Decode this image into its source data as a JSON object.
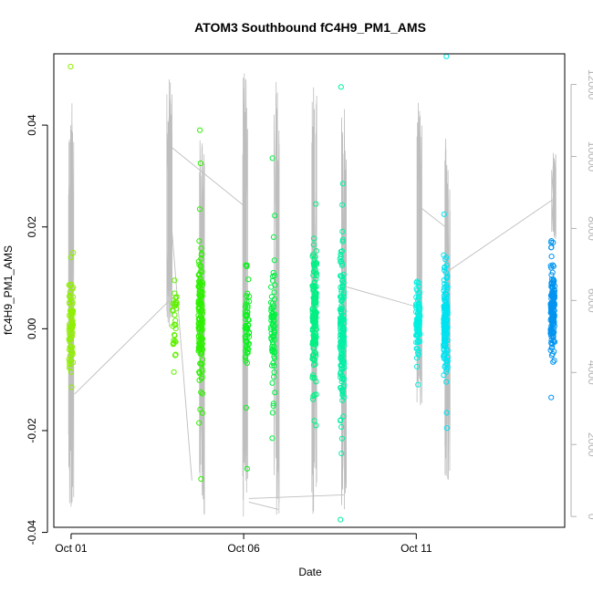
{
  "chart_data": {
    "type": "scatter",
    "title": "ATOM3 Southbound fC4H9_PM1_AMS",
    "xlabel": "Date",
    "ylabel": "fC4H9_PM1_AMS",
    "x_ticks": [
      "Oct 01",
      "Oct 06",
      "Oct 11"
    ],
    "x_tick_values": [
      1,
      6,
      11
    ],
    "xlim": [
      0.5,
      15.3
    ],
    "ylim": [
      -0.039,
      0.054
    ],
    "y_ticks": [
      "-0.04",
      "-0.02",
      "0.00",
      "0.02",
      "0.04"
    ],
    "y_tick_values": [
      -0.04,
      -0.02,
      0.0,
      0.02,
      0.04
    ],
    "y2_ticks": [
      "0",
      "2000",
      "4000",
      "6000",
      "8000",
      "10000",
      "12000"
    ],
    "y2_tick_values": [
      0,
      2000,
      4000,
      6000,
      8000,
      10000,
      12000
    ],
    "y2lim": [
      -300,
      12850
    ],
    "grid": false,
    "series": [
      {
        "kind": "points",
        "clusters": [
          {
            "x": 1.0,
            "y_center": 0.0005,
            "spread": 0.005,
            "n": 70,
            "color": "#8ff000",
            "extremes": [
              0.0515,
              0.014,
              -0.0115
            ]
          },
          {
            "x": 4.0,
            "y_center": 0.001,
            "spread": 0.004,
            "n": 30,
            "color": "#5ff000",
            "extremes": [
              0.0095,
              -0.0085
            ]
          },
          {
            "x": 4.75,
            "y_center": 0.001,
            "spread": 0.0065,
            "n": 150,
            "color": "#2ef000",
            "extremes": [
              0.039,
              0.0325,
              0.0235,
              -0.0185,
              -0.0295
            ]
          },
          {
            "x": 6.1,
            "y_center": 0.001,
            "spread": 0.004,
            "n": 60,
            "color": "#0ff020",
            "extremes": [
              0.0125,
              -0.0155,
              -0.0275
            ]
          },
          {
            "x": 6.85,
            "y_center": 0.0,
            "spread": 0.006,
            "n": 70,
            "color": "#00f040",
            "extremes": [
              0.0335,
              0.018,
              -0.0165,
              -0.0215
            ]
          },
          {
            "x": 8.05,
            "y_center": 0.0015,
            "spread": 0.006,
            "n": 150,
            "color": "#00f084",
            "extremes": [
              0.0245,
              0.0165,
              -0.019
            ]
          },
          {
            "x": 8.85,
            "y_center": 0.0,
            "spread": 0.0075,
            "n": 150,
            "color": "#00f0a5",
            "extremes": [
              0.0475,
              0.0285,
              -0.0245,
              -0.0375
            ]
          },
          {
            "x": 11.05,
            "y_center": 0.002,
            "spread": 0.004,
            "n": 80,
            "color": "#00f0e0",
            "extremes": [
              0.009,
              -0.011
            ]
          },
          {
            "x": 11.85,
            "y_center": 0.001,
            "spread": 0.005,
            "n": 150,
            "color": "#00e2f0",
            "extremes": [
              0.0535,
              0.0225,
              0.014,
              -0.0165,
              -0.0195
            ]
          },
          {
            "x": 14.95,
            "y_center": 0.003,
            "spread": 0.005,
            "n": 150,
            "color": "#0094f0",
            "extremes": [
              0.016,
              0.0125,
              -0.0135
            ]
          }
        ]
      },
      {
        "kind": "altitude-line",
        "axis": "right",
        "color": "#bebebe",
        "vertical_spikes": [
          {
            "x": 1.0,
            "min": 0,
            "max": 11700
          },
          {
            "x": 3.85,
            "min": 5200,
            "max": 12300
          },
          {
            "x": 4.8,
            "min": 0,
            "max": 10500
          },
          {
            "x": 6.05,
            "min": 0,
            "max": 12400
          },
          {
            "x": 6.95,
            "min": 0,
            "max": 12300
          },
          {
            "x": 8.05,
            "min": 0,
            "max": 12000
          },
          {
            "x": 8.9,
            "min": 0,
            "max": 11700
          },
          {
            "x": 11.1,
            "min": 3000,
            "max": 11600
          },
          {
            "x": 11.9,
            "min": 1000,
            "max": 10500
          },
          {
            "x": 15.0,
            "min": 7700,
            "max": 10100
          }
        ],
        "connectors": [
          [
            1.1,
            3400,
            3.85,
            6000
          ],
          [
            3.85,
            10300,
            6.05,
            8600
          ],
          [
            6.15,
            400,
            7.0,
            200
          ],
          [
            6.15,
            500,
            8.9,
            600
          ],
          [
            8.9,
            6400,
            11.1,
            5800
          ],
          [
            11.1,
            8600,
            11.9,
            8000
          ],
          [
            11.9,
            6800,
            14.95,
            8800
          ],
          [
            3.85,
            8800,
            4.5,
            1000
          ]
        ]
      }
    ]
  }
}
